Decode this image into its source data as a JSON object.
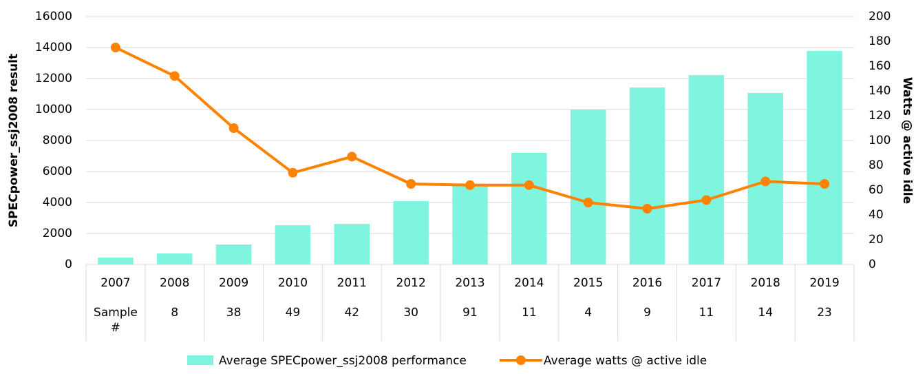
{
  "chart_data": {
    "type": "bar-line",
    "categories": [
      "2007",
      "2008",
      "2009",
      "2010",
      "2011",
      "2012",
      "2013",
      "2014",
      "2015",
      "2016",
      "2017",
      "2018",
      "2019"
    ],
    "category_sublabels": [
      "Sample #",
      8,
      38,
      49,
      42,
      30,
      91,
      11,
      4,
      9,
      11,
      14,
      23
    ],
    "y_label": "SPECpower_ssj2008 result",
    "y2_label": "Watts @ active idle",
    "ylim": [
      0,
      16000
    ],
    "yticks": [
      0,
      2000,
      4000,
      6000,
      8000,
      10000,
      12000,
      14000,
      16000
    ],
    "y2lim": [
      0,
      200
    ],
    "y2ticks": [
      0,
      20,
      40,
      60,
      80,
      100,
      120,
      140,
      160,
      180,
      200
    ],
    "grid": true,
    "legend": "bottom",
    "series": [
      {
        "name": "Average SPECpower_ssj2008 performance",
        "type": "bar",
        "color": "#7ff5e0",
        "values": [
          440,
          710,
          1290,
          2530,
          2620,
          4090,
          5160,
          7200,
          10000,
          11420,
          12220,
          11070,
          13780
        ]
      },
      {
        "name": "Average watts @ active idle",
        "type": "line",
        "axis": "y2",
        "color": "#ff8300",
        "values": [
          175,
          152,
          110,
          74,
          87,
          65,
          64,
          64,
          50,
          45,
          52,
          67,
          65
        ]
      }
    ]
  }
}
